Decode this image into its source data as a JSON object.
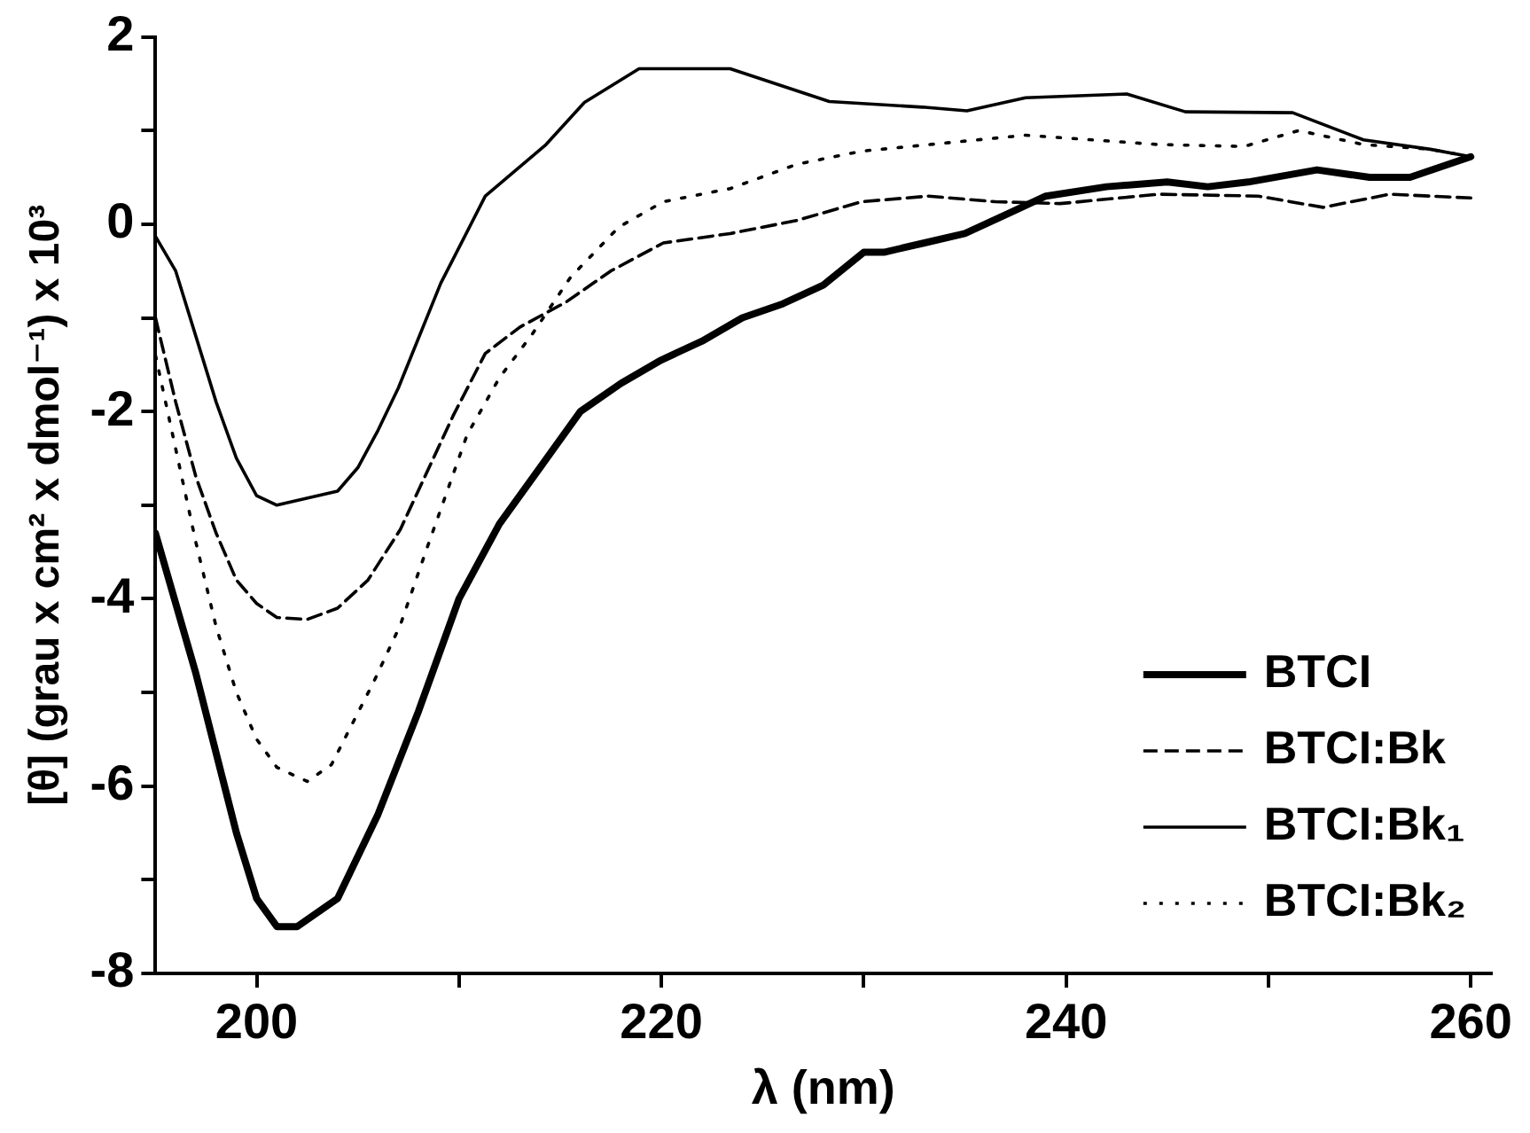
{
  "chart_data": {
    "type": "line",
    "xlabel": "λ (nm)",
    "ylabel": "[θ] (grau x cm² x dmol⁻¹) x 10³",
    "xlim": [
      195,
      261
    ],
    "xticks": [
      200,
      {
        "value": 210,
        "label": null
      },
      220,
      {
        "value": 230,
        "label": null
      },
      240,
      {
        "value": 250,
        "label": null
      },
      260
    ],
    "ylim": [
      -8,
      2
    ],
    "yticks": [
      -8,
      {
        "value": -7,
        "label": null
      },
      -6,
      {
        "value": -5,
        "label": null
      },
      -4,
      {
        "value": -3,
        "label": null
      },
      -2,
      {
        "value": -1,
        "label": null
      },
      0,
      {
        "value": 1,
        "label": null
      },
      2
    ],
    "grid": false,
    "legend": "bottom right",
    "marker": "none",
    "series": [
      {
        "name": "BTCI",
        "color": "#000000",
        "line_style": "solid",
        "x": [
          195,
          197,
          199,
          200,
          201,
          202,
          204,
          206,
          208,
          210,
          212,
          214,
          216,
          218,
          220,
          222,
          224,
          226,
          228,
          230,
          231,
          233,
          235,
          237,
          239,
          242,
          245,
          247,
          249,
          252.4,
          255,
          257,
          260
        ],
        "values": [
          -3.3,
          -4.8,
          -6.5,
          -7.2,
          -7.5,
          -7.5,
          -7.2,
          -6.3,
          -5.2,
          -4.0,
          -3.2,
          -2.6,
          -2.0,
          -1.7,
          -1.45,
          -1.25,
          -1.0,
          -0.85,
          -0.65,
          -0.3,
          -0.3,
          -0.2,
          -0.1,
          0.1,
          0.3,
          0.4,
          0.45,
          0.4,
          0.45,
          0.58,
          0.5,
          0.5,
          0.72
        ]
      },
      {
        "name": "BTCI:Bk",
        "color": "#000000",
        "line_style": "dashed",
        "x": [
          195,
          196,
          197,
          198,
          199,
          200,
          201,
          202.5,
          204,
          205.5,
          207.1,
          209.7,
          211.3,
          213,
          215.3,
          217.5,
          220.1,
          223.4,
          226.7,
          229.9,
          233.2,
          236.5,
          239.7,
          244.6,
          249.5,
          252.7,
          256,
          260
        ],
        "values": [
          -1.0,
          -1.9,
          -2.7,
          -3.3,
          -3.8,
          -4.05,
          -4.2,
          -4.22,
          -4.1,
          -3.8,
          -3.26,
          -2.05,
          -1.38,
          -1.1,
          -0.83,
          -0.5,
          -0.2,
          -0.1,
          0.04,
          0.24,
          0.3,
          0.24,
          0.22,
          0.32,
          0.3,
          0.18,
          0.32,
          0.28
        ]
      },
      {
        "name": "BTCI:Bk₁",
        "color": "#000000",
        "line_style": "solid",
        "x": [
          195,
          196,
          197,
          198,
          199,
          200,
          201,
          203,
          204,
          205,
          206,
          207,
          209.1,
          211.3,
          214.3,
          216.2,
          218.9,
          223.4,
          228.3,
          232.9,
          235.1,
          238,
          243,
          245.9,
          251.2,
          254.7,
          258,
          260
        ],
        "values": [
          -0.13,
          -0.5,
          -1.2,
          -1.9,
          -2.5,
          -2.9,
          -3.0,
          -2.9,
          -2.85,
          -2.6,
          -2.2,
          -1.75,
          -0.63,
          0.3,
          0.85,
          1.3,
          1.66,
          1.66,
          1.31,
          1.25,
          1.21,
          1.35,
          1.39,
          1.2,
          1.19,
          0.9,
          0.8,
          0.72
        ]
      },
      {
        "name": "BTCI:Bk₂",
        "color": "#000000",
        "line_style": "dotted",
        "x": [
          195,
          196,
          197,
          198,
          199,
          200,
          201,
          202.5,
          203.7,
          205.8,
          207.1,
          208.4,
          210.4,
          212,
          213.6,
          215.5,
          217.9,
          220.1,
          223.4,
          226.7,
          229.9,
          238,
          244.6,
          248.8,
          251.5,
          254.7,
          258,
          260
        ],
        "values": [
          -1.4,
          -2.4,
          -3.4,
          -4.3,
          -5.0,
          -5.5,
          -5.8,
          -5.95,
          -5.77,
          -4.88,
          -4.28,
          -3.47,
          -2.25,
          -1.64,
          -1.18,
          -0.57,
          -0.03,
          0.24,
          0.38,
          0.64,
          0.78,
          0.95,
          0.85,
          0.83,
          1.0,
          0.85,
          0.8,
          0.72
        ]
      }
    ]
  }
}
